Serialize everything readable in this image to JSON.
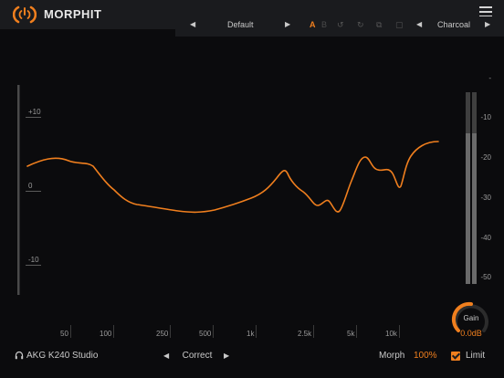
{
  "header": {
    "title": "MORPHIT",
    "accent": "#f07f1e"
  },
  "toolbar": {
    "preset_name": "Default",
    "ab_a": "A",
    "ab_b": "B",
    "theme_name": "Charcoal",
    "prev_glyph": "◀",
    "next_glyph": "▶",
    "icons": [
      "undo-icon",
      "redo-icon",
      "copy-icon",
      "paste-icon"
    ]
  },
  "scale": {
    "top": "+10",
    "middle": "0",
    "bottom": "-10"
  },
  "frequency_labels": [
    "50",
    "100",
    "250",
    "500",
    "1k",
    "2.5k",
    "5k",
    "10k"
  ],
  "meter_labels": [
    "-",
    "-10",
    "-20",
    "-30",
    "-40",
    "-50"
  ],
  "gain": {
    "label": "Gain",
    "value": "0.0dB"
  },
  "footer": {
    "headphone_name": "AKG K240 Studio",
    "mode_name": "Correct",
    "morph_label": "Morph",
    "morph_value": "100%",
    "limit_label": "Limit",
    "limit_checked": true
  },
  "curve": {
    "color": "#f07f1e"
  }
}
